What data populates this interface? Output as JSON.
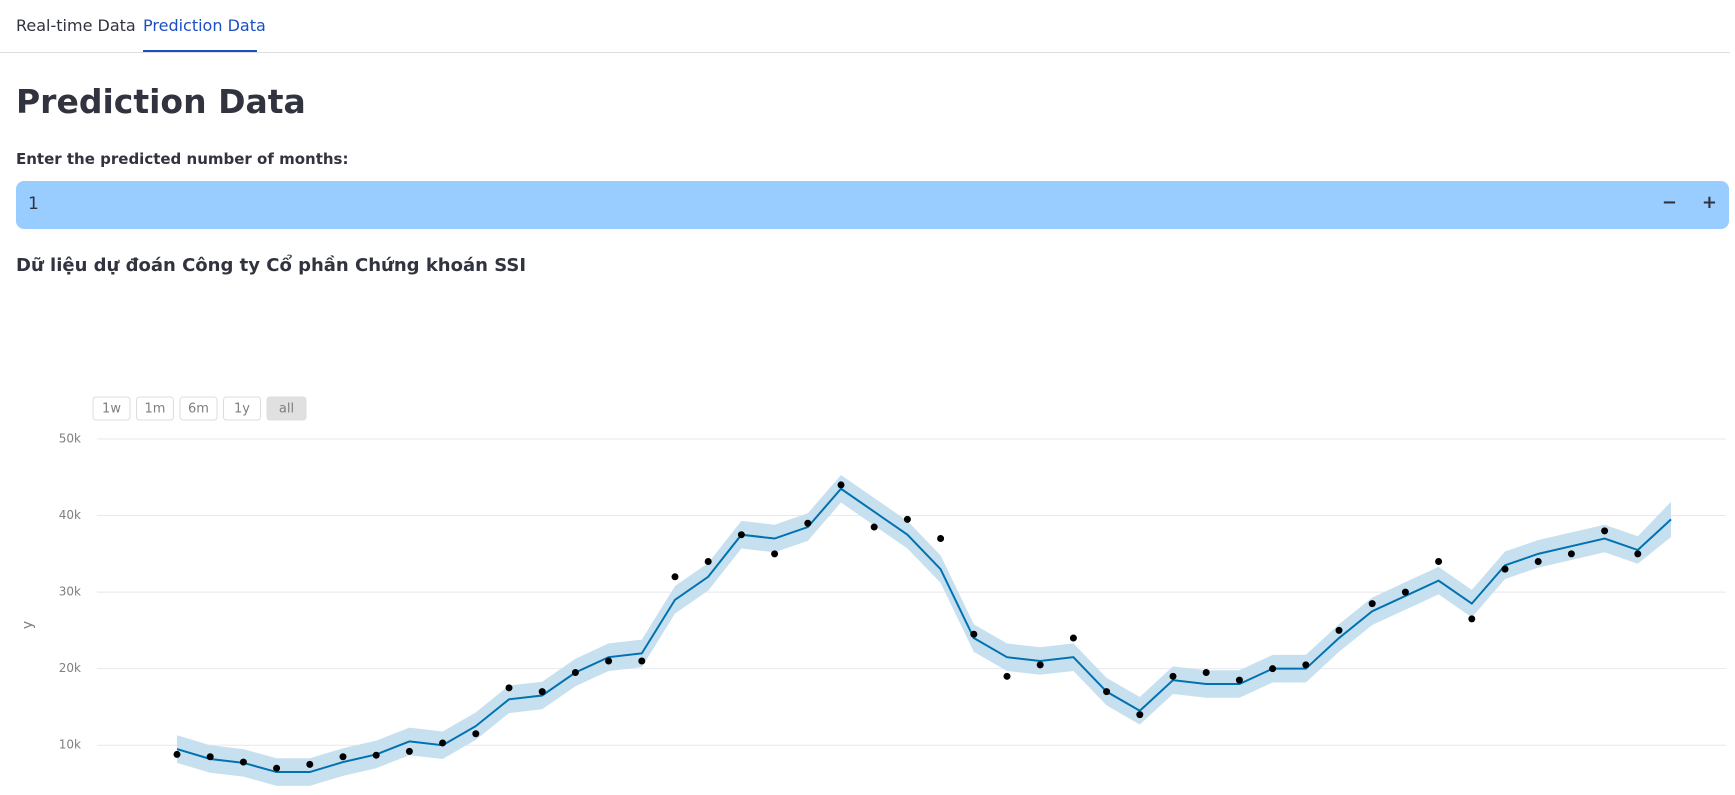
{
  "tabs": [
    "Real-time Data",
    "Prediction Data"
  ],
  "heading": "Prediction Data",
  "input": {
    "label": "Enter the predicted number of months:",
    "value": "1",
    "minus": "−",
    "plus": "+"
  },
  "subheading": "Dữ liệu dự đoán Công ty Cổ phần Chứng khoán SSI",
  "chart_data": {
    "type": "forecast",
    "ylabel": "y",
    "range_buttons": [
      "1w",
      "1m",
      "6m",
      "1y",
      "all"
    ],
    "categories": [
      null,
      null,
      null,
      null,
      null,
      null,
      null,
      null,
      null,
      null,
      null,
      null,
      null,
      null,
      null,
      null,
      null,
      null,
      null,
      null,
      null,
      null,
      null,
      null,
      null,
      null,
      null,
      null,
      null,
      null,
      null,
      null,
      null,
      null,
      null,
      null,
      null,
      null,
      null,
      null,
      null,
      null,
      null,
      null,
      null,
      null
    ],
    "ylim": [
      3500,
      50000
    ],
    "yticks": [
      {
        "value": 10000,
        "label": "10k"
      },
      {
        "value": 20000,
        "label": "20k"
      },
      {
        "value": 30000,
        "label": "30k"
      },
      {
        "value": 40000,
        "label": "40k"
      },
      {
        "value": 50000,
        "label": "50k"
      }
    ],
    "grid": true,
    "series": [
      {
        "color": "#000000",
        "values": [
          8800,
          8500,
          7800,
          7000,
          7500,
          8500,
          8700,
          9200,
          10300,
          11500,
          17500,
          17000,
          19500,
          21000,
          21000,
          32000,
          34000,
          37500,
          35000,
          39000,
          44000,
          38500,
          39500,
          37000,
          24500,
          19000,
          20500,
          24000,
          17000,
          14000,
          19000,
          19500,
          18500,
          20000,
          20500,
          25000,
          28500,
          30000,
          34000,
          26500,
          33000,
          34000,
          35000,
          38000,
          35000,
          null
        ]
      },
      {
        "color": "#0072b2",
        "values": [
          9500,
          8200,
          7700,
          6500,
          6500,
          7800,
          8800,
          10500,
          10000,
          12500,
          16000,
          16500,
          19500,
          21500,
          22000,
          29000,
          32000,
          37500,
          37000,
          38500,
          43500,
          40500,
          37500,
          33000,
          24000,
          21500,
          21000,
          21500,
          17000,
          14500,
          18500,
          18000,
          18000,
          20000,
          20000,
          24000,
          27500,
          29500,
          31500,
          28500,
          33500,
          35000,
          36000,
          37000,
          35500,
          39500
        ]
      }
    ],
    "band": {
      "color": "#c7e0ef",
      "upper": [
        11300,
        10000,
        9500,
        8300,
        8300,
        9600,
        10600,
        12300,
        11800,
        14300,
        17800,
        18300,
        21300,
        23300,
        23800,
        30800,
        33800,
        39300,
        38800,
        40300,
        45300,
        42300,
        39300,
        34800,
        25800,
        23300,
        22800,
        23300,
        18800,
        16300,
        20300,
        19800,
        19800,
        21800,
        21800,
        25800,
        29300,
        31300,
        33300,
        30300,
        35300,
        36800,
        37800,
        38800,
        37300,
        41800
      ],
      "lower": [
        7700,
        6400,
        5900,
        4700,
        4700,
        6000,
        7000,
        8700,
        8200,
        10700,
        14200,
        14700,
        17700,
        19700,
        20200,
        27200,
        30200,
        35700,
        35200,
        36700,
        41700,
        38700,
        35700,
        31200,
        22200,
        19700,
        19200,
        19700,
        15200,
        12700,
        16700,
        16200,
        16200,
        18200,
        18200,
        22200,
        25700,
        27700,
        29700,
        26700,
        31700,
        33200,
        34200,
        35200,
        33700,
        37200
      ]
    }
  }
}
